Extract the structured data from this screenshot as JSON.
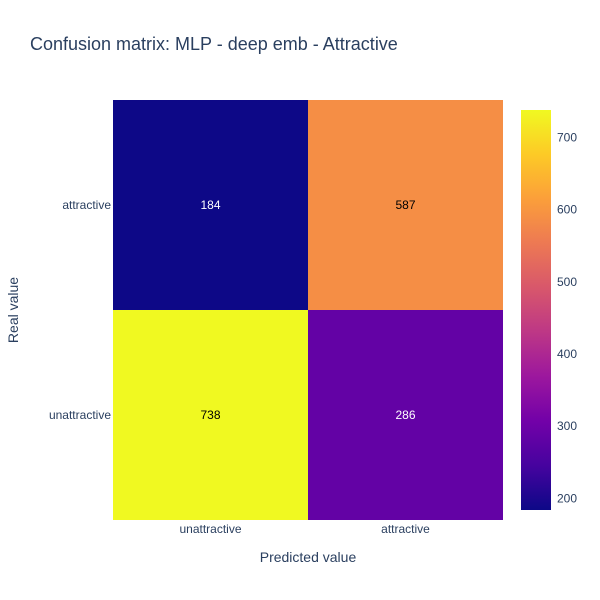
{
  "chart_data": {
    "type": "heatmap",
    "title": "Confusion matrix: MLP - deep emb - Attractive",
    "xlabel": "Predicted value",
    "ylabel": "Real value",
    "x_categories": [
      "unattractive",
      "attractive"
    ],
    "y_categories": [
      "attractive",
      "unattractive"
    ],
    "values": [
      [
        184,
        587
      ],
      [
        738,
        286
      ]
    ],
    "colorscale": "plasma",
    "zrange": [
      184,
      738
    ],
    "colorbar_ticks": [
      200,
      300,
      400,
      500,
      600,
      700
    ]
  },
  "colors": {
    "title": "#2a3f5f",
    "text": "#2a3f5f",
    "cell_text_dark": "#000000",
    "cell_text_light": "#ffffff"
  }
}
